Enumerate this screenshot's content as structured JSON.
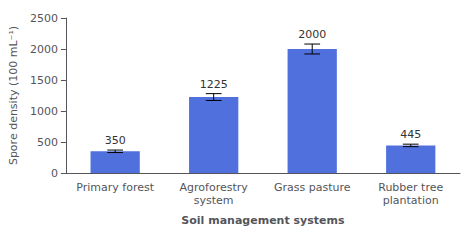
{
  "chart_data": {
    "type": "bar",
    "categories": [
      "Primary forest",
      "Agroforestry\nsystem",
      "Grass pasture",
      "Rubber tree\nplantation"
    ],
    "values": [
      350,
      1225,
      2000,
      445
    ],
    "errors": [
      20,
      55,
      80,
      20
    ],
    "ylabel": "Spore density (100 mL⁻¹)",
    "xlabel": "Soil management systems",
    "ylim": [
      0,
      2500
    ],
    "yticks": [
      0,
      500,
      1000,
      1500,
      2000,
      2500
    ],
    "data_labels": true,
    "grid": false
  }
}
